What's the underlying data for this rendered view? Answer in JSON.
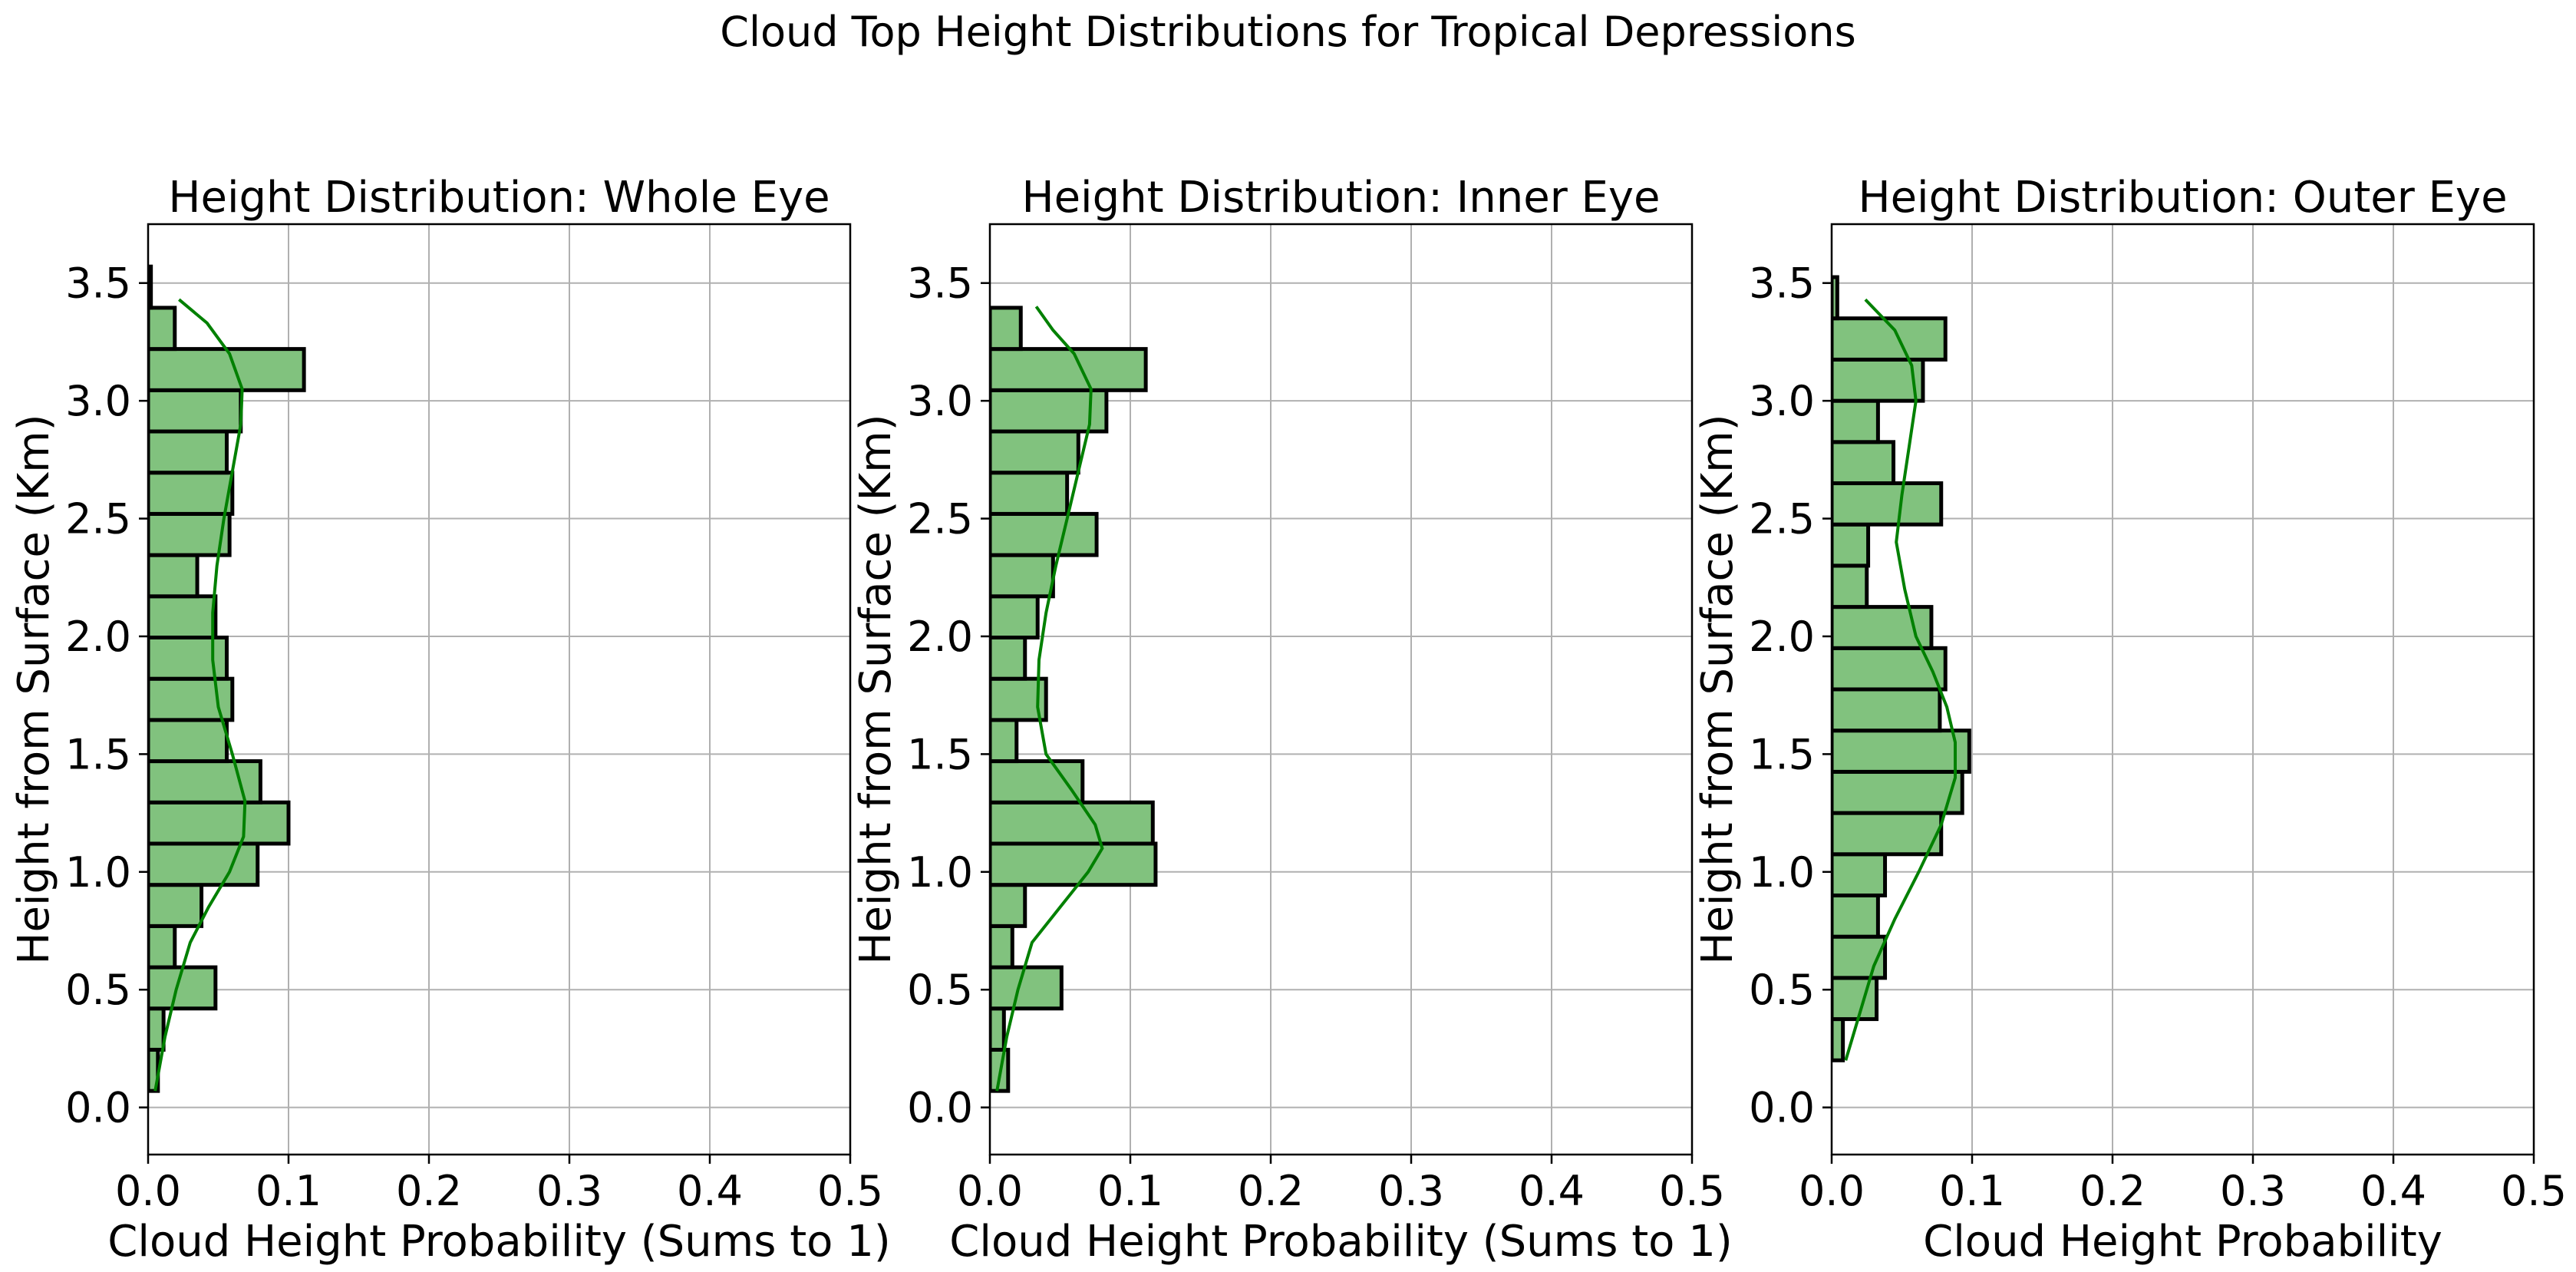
{
  "figure": {
    "suptitle": "Cloud Top Height Distributions for Tropical Depressions"
  },
  "colors": {
    "bar_fill": "#81c27e",
    "bar_edge": "#000000",
    "kde_line": "#008000",
    "grid": "#b0b0b0"
  },
  "chart_data": [
    {
      "type": "bar",
      "orientation": "horizontal",
      "title": "Height Distribution: Whole Eye",
      "xlabel": "Cloud Height Probability (Sums to 1)",
      "ylabel": "Height from Surface (Km)",
      "xlim": [
        0,
        0.5
      ],
      "ylim": [
        -0.2,
        3.75
      ],
      "xticks": [
        "0.0",
        "0.1",
        "0.2",
        "0.3",
        "0.4",
        "0.5"
      ],
      "yticks": [
        "0.0",
        "0.5",
        "1.0",
        "1.5",
        "2.0",
        "2.5",
        "3.0",
        "3.5"
      ],
      "grid": true,
      "bins": [
        {
          "from": 0.07,
          "to": 0.245,
          "value": 0.007
        },
        {
          "from": 0.245,
          "to": 0.42,
          "value": 0.011
        },
        {
          "from": 0.42,
          "to": 0.595,
          "value": 0.048
        },
        {
          "from": 0.595,
          "to": 0.77,
          "value": 0.019
        },
        {
          "from": 0.77,
          "to": 0.945,
          "value": 0.038
        },
        {
          "from": 0.945,
          "to": 1.12,
          "value": 0.078
        },
        {
          "from": 1.12,
          "to": 1.295,
          "value": 0.1
        },
        {
          "from": 1.295,
          "to": 1.47,
          "value": 0.08
        },
        {
          "from": 1.47,
          "to": 1.645,
          "value": 0.056
        },
        {
          "from": 1.645,
          "to": 1.82,
          "value": 0.06
        },
        {
          "from": 1.82,
          "to": 1.995,
          "value": 0.056
        },
        {
          "from": 1.995,
          "to": 2.17,
          "value": 0.048
        },
        {
          "from": 2.17,
          "to": 2.345,
          "value": 0.035
        },
        {
          "from": 2.345,
          "to": 2.52,
          "value": 0.058
        },
        {
          "from": 2.52,
          "to": 2.695,
          "value": 0.06
        },
        {
          "from": 2.695,
          "to": 2.87,
          "value": 0.056
        },
        {
          "from": 2.87,
          "to": 3.045,
          "value": 0.066
        },
        {
          "from": 3.045,
          "to": 3.22,
          "value": 0.111
        },
        {
          "from": 3.22,
          "to": 3.395,
          "value": 0.019
        },
        {
          "from": 3.395,
          "to": 3.57,
          "value": 0.002
        }
      ],
      "kde": [
        [
          0.005,
          0.07
        ],
        [
          0.012,
          0.3
        ],
        [
          0.02,
          0.5
        ],
        [
          0.03,
          0.7
        ],
        [
          0.043,
          0.85
        ],
        [
          0.058,
          1.0
        ],
        [
          0.068,
          1.15
        ],
        [
          0.069,
          1.3
        ],
        [
          0.06,
          1.5
        ],
        [
          0.05,
          1.7
        ],
        [
          0.046,
          1.9
        ],
        [
          0.046,
          2.1
        ],
        [
          0.049,
          2.3
        ],
        [
          0.054,
          2.5
        ],
        [
          0.06,
          2.7
        ],
        [
          0.066,
          2.9
        ],
        [
          0.067,
          3.05
        ],
        [
          0.058,
          3.2
        ],
        [
          0.042,
          3.33
        ],
        [
          0.022,
          3.43
        ]
      ]
    },
    {
      "type": "bar",
      "orientation": "horizontal",
      "title": "Height Distribution: Inner Eye",
      "xlabel": "Cloud Height Probability (Sums to 1)",
      "ylabel": "Height from Surface (Km)",
      "xlim": [
        0,
        0.5
      ],
      "ylim": [
        -0.2,
        3.75
      ],
      "xticks": [
        "0.0",
        "0.1",
        "0.2",
        "0.3",
        "0.4",
        "0.5"
      ],
      "yticks": [
        "0.0",
        "0.5",
        "1.0",
        "1.5",
        "2.0",
        "2.5",
        "3.0",
        "3.5"
      ],
      "grid": true,
      "bins": [
        {
          "from": 0.07,
          "to": 0.245,
          "value": 0.013
        },
        {
          "from": 0.245,
          "to": 0.42,
          "value": 0.01
        },
        {
          "from": 0.42,
          "to": 0.595,
          "value": 0.051
        },
        {
          "from": 0.595,
          "to": 0.77,
          "value": 0.016
        },
        {
          "from": 0.77,
          "to": 0.945,
          "value": 0.025
        },
        {
          "from": 0.945,
          "to": 1.12,
          "value": 0.118
        },
        {
          "from": 1.12,
          "to": 1.295,
          "value": 0.116
        },
        {
          "from": 1.295,
          "to": 1.47,
          "value": 0.066
        },
        {
          "from": 1.47,
          "to": 1.645,
          "value": 0.019
        },
        {
          "from": 1.645,
          "to": 1.82,
          "value": 0.04
        },
        {
          "from": 1.82,
          "to": 1.995,
          "value": 0.025
        },
        {
          "from": 1.995,
          "to": 2.17,
          "value": 0.034
        },
        {
          "from": 2.17,
          "to": 2.345,
          "value": 0.045
        },
        {
          "from": 2.345,
          "to": 2.52,
          "value": 0.076
        },
        {
          "from": 2.52,
          "to": 2.695,
          "value": 0.055
        },
        {
          "from": 2.695,
          "to": 2.87,
          "value": 0.063
        },
        {
          "from": 2.87,
          "to": 3.045,
          "value": 0.083
        },
        {
          "from": 3.045,
          "to": 3.22,
          "value": 0.111
        },
        {
          "from": 3.22,
          "to": 3.395,
          "value": 0.022
        }
      ],
      "kde": [
        [
          0.005,
          0.07
        ],
        [
          0.012,
          0.3
        ],
        [
          0.02,
          0.5
        ],
        [
          0.03,
          0.7
        ],
        [
          0.05,
          0.85
        ],
        [
          0.07,
          1.0
        ],
        [
          0.08,
          1.1
        ],
        [
          0.075,
          1.2
        ],
        [
          0.058,
          1.35
        ],
        [
          0.04,
          1.5
        ],
        [
          0.034,
          1.7
        ],
        [
          0.035,
          1.9
        ],
        [
          0.04,
          2.1
        ],
        [
          0.047,
          2.3
        ],
        [
          0.055,
          2.5
        ],
        [
          0.063,
          2.7
        ],
        [
          0.071,
          2.9
        ],
        [
          0.072,
          3.05
        ],
        [
          0.06,
          3.2
        ],
        [
          0.045,
          3.3
        ],
        [
          0.033,
          3.4
        ]
      ]
    },
    {
      "type": "bar",
      "orientation": "horizontal",
      "title": "Height Distribution: Outer Eye",
      "xlabel": "Cloud Height Probability",
      "ylabel": "Height from Surface (Km)",
      "xlim": [
        0,
        0.5
      ],
      "ylim": [
        -0.2,
        3.75
      ],
      "xticks": [
        "0.0",
        "0.1",
        "0.2",
        "0.3",
        "0.4",
        "0.5"
      ],
      "yticks": [
        "0.0",
        "0.5",
        "1.0",
        "1.5",
        "2.0",
        "2.5",
        "3.0",
        "3.5"
      ],
      "grid": true,
      "bins": [
        {
          "from": 0.2,
          "to": 0.375,
          "value": 0.008
        },
        {
          "from": 0.375,
          "to": 0.55,
          "value": 0.032
        },
        {
          "from": 0.55,
          "to": 0.725,
          "value": 0.038
        },
        {
          "from": 0.725,
          "to": 0.9,
          "value": 0.033
        },
        {
          "from": 0.9,
          "to": 1.075,
          "value": 0.038
        },
        {
          "from": 1.075,
          "to": 1.25,
          "value": 0.078
        },
        {
          "from": 1.25,
          "to": 1.425,
          "value": 0.093
        },
        {
          "from": 1.425,
          "to": 1.6,
          "value": 0.098
        },
        {
          "from": 1.6,
          "to": 1.775,
          "value": 0.077
        },
        {
          "from": 1.775,
          "to": 1.95,
          "value": 0.081
        },
        {
          "from": 1.95,
          "to": 2.125,
          "value": 0.071
        },
        {
          "from": 2.125,
          "to": 2.3,
          "value": 0.025
        },
        {
          "from": 2.3,
          "to": 2.475,
          "value": 0.026
        },
        {
          "from": 2.475,
          "to": 2.65,
          "value": 0.078
        },
        {
          "from": 2.65,
          "to": 2.825,
          "value": 0.044
        },
        {
          "from": 2.825,
          "to": 3.0,
          "value": 0.033
        },
        {
          "from": 3.0,
          "to": 3.175,
          "value": 0.065
        },
        {
          "from": 3.175,
          "to": 3.35,
          "value": 0.081
        },
        {
          "from": 3.35,
          "to": 3.525,
          "value": 0.004
        }
      ],
      "kde": [
        [
          0.01,
          0.2
        ],
        [
          0.02,
          0.4
        ],
        [
          0.03,
          0.6
        ],
        [
          0.045,
          0.8
        ],
        [
          0.062,
          1.0
        ],
        [
          0.078,
          1.2
        ],
        [
          0.088,
          1.4
        ],
        [
          0.088,
          1.55
        ],
        [
          0.082,
          1.7
        ],
        [
          0.072,
          1.85
        ],
        [
          0.06,
          2.0
        ],
        [
          0.052,
          2.2
        ],
        [
          0.046,
          2.4
        ],
        [
          0.05,
          2.6
        ],
        [
          0.055,
          2.8
        ],
        [
          0.06,
          3.0
        ],
        [
          0.057,
          3.15
        ],
        [
          0.045,
          3.3
        ],
        [
          0.024,
          3.43
        ]
      ]
    }
  ]
}
